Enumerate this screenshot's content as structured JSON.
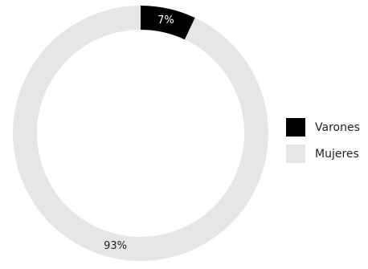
{
  "chart_data": {
    "type": "pie",
    "donut": true,
    "legend_position": "right",
    "series": [
      {
        "name": "Varones",
        "value": 7,
        "label": "7%",
        "color": "#000000",
        "label_color": "#ffffff"
      },
      {
        "name": "Mujeres",
        "value": 93,
        "label": "93%",
        "color": "#e6e6e6",
        "label_color": "#222222"
      }
    ]
  }
}
